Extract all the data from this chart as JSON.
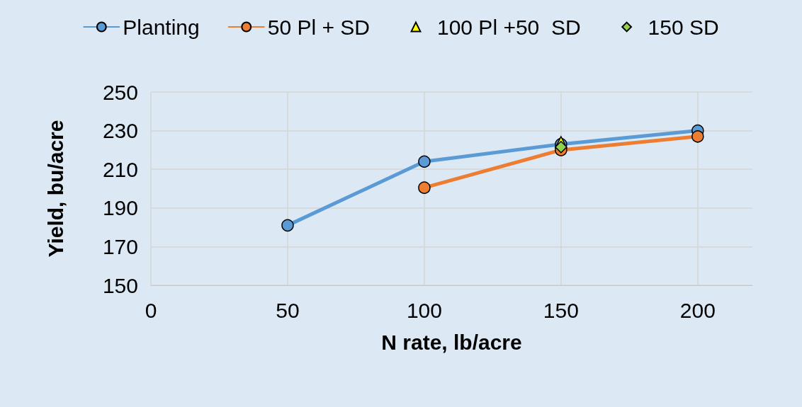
{
  "chart_data": {
    "type": "line",
    "xlabel": "N rate, lb/acre",
    "ylabel": "Yield, bu/acre",
    "xlim": [
      0,
      220
    ],
    "xticks": [
      0,
      50,
      100,
      150,
      200
    ],
    "ylim": [
      150,
      250
    ],
    "yticks": [
      150,
      170,
      190,
      210,
      230,
      250
    ],
    "grid": true,
    "legend": "top",
    "marker": "circle",
    "series": [
      {
        "name": "Planting",
        "color": "#5b9bd5",
        "x": [
          50,
          100,
          150,
          200
        ],
        "values": [
          181,
          214,
          223,
          230
        ]
      },
      {
        "name": "50 Pl + SD",
        "color": "#ed7d31",
        "x": [
          100,
          150,
          200
        ],
        "values": [
          200.5,
          220,
          227
        ]
      },
      {
        "name": "100 Pl +50  SD",
        "type": "scatter",
        "marker": "triangle",
        "color": "#ffff00",
        "x": [
          150
        ],
        "values": [
          224
        ]
      },
      {
        "name": "150 SD",
        "type": "scatter",
        "marker": "diamond",
        "color": "#92d050",
        "x": [
          150
        ],
        "values": [
          221.5
        ]
      }
    ]
  }
}
